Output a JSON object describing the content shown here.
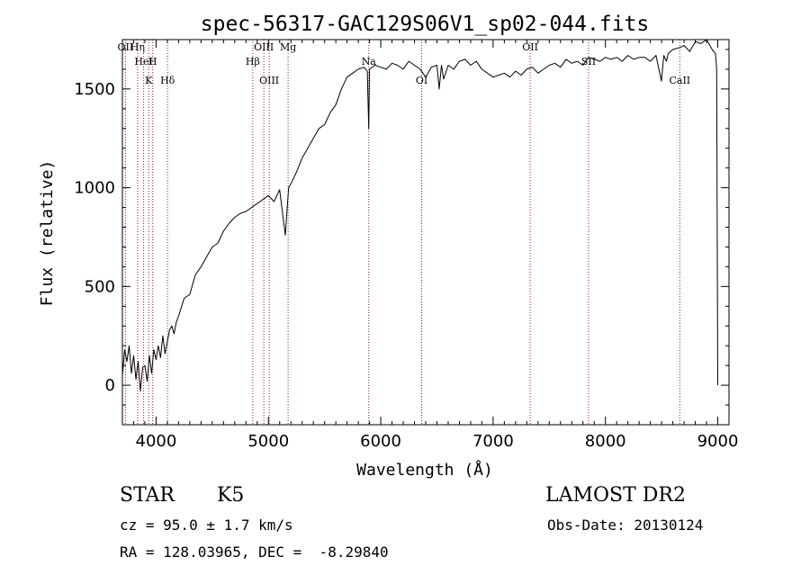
{
  "chart_data": {
    "type": "line",
    "title": "spec-56317-GAC129S06V1_sp02-044.fits",
    "xlabel": "Wavelength (Å)",
    "ylabel": "Flux (relative)",
    "xlim": [
      3700,
      9100
    ],
    "ylim": [
      -200,
      1750
    ],
    "xticks": [
      4000,
      5000,
      6000,
      7000,
      8000,
      9000
    ],
    "yticks": [
      0,
      500,
      1000,
      1500
    ],
    "spectrum": {
      "x": [
        3700,
        3720,
        3740,
        3760,
        3780,
        3800,
        3820,
        3840,
        3860,
        3880,
        3900,
        3920,
        3940,
        3960,
        3980,
        4000,
        4020,
        4040,
        4060,
        4080,
        4100,
        4120,
        4140,
        4160,
        4180,
        4200,
        4250,
        4300,
        4350,
        4400,
        4450,
        4500,
        4550,
        4600,
        4650,
        4700,
        4750,
        4800,
        4850,
        4900,
        4950,
        5000,
        5050,
        5100,
        5150,
        5180,
        5200,
        5250,
        5300,
        5350,
        5400,
        5450,
        5500,
        5550,
        5600,
        5650,
        5700,
        5750,
        5800,
        5850,
        5880,
        5893,
        5900,
        5950,
        6000,
        6050,
        6100,
        6150,
        6200,
        6250,
        6300,
        6350,
        6400,
        6450,
        6500,
        6520,
        6540,
        6560,
        6600,
        6650,
        6700,
        6750,
        6800,
        6850,
        6900,
        6950,
        7000,
        7050,
        7100,
        7150,
        7200,
        7250,
        7300,
        7350,
        7400,
        7450,
        7500,
        7550,
        7600,
        7650,
        7700,
        7750,
        7800,
        7850,
        7900,
        7950,
        8000,
        8050,
        8100,
        8150,
        8200,
        8250,
        8300,
        8350,
        8400,
        8450,
        8498,
        8520,
        8542,
        8560,
        8600,
        8662,
        8700,
        8750,
        8800,
        8850,
        8900,
        8950,
        8980,
        8990,
        9000
      ],
      "y": [
        50,
        180,
        120,
        200,
        60,
        150,
        30,
        120,
        -30,
        90,
        100,
        20,
        150,
        60,
        180,
        130,
        200,
        140,
        250,
        160,
        220,
        280,
        300,
        260,
        320,
        350,
        440,
        460,
        560,
        600,
        650,
        700,
        720,
        780,
        820,
        850,
        870,
        880,
        900,
        920,
        940,
        960,
        930,
        990,
        760,
        1000,
        1020,
        1080,
        1150,
        1200,
        1250,
        1300,
        1320,
        1380,
        1420,
        1500,
        1560,
        1580,
        1600,
        1610,
        1590,
        1300,
        1600,
        1620,
        1610,
        1600,
        1630,
        1620,
        1600,
        1640,
        1620,
        1600,
        1560,
        1610,
        1620,
        1500,
        1620,
        1550,
        1620,
        1600,
        1640,
        1650,
        1620,
        1640,
        1600,
        1580,
        1560,
        1570,
        1580,
        1560,
        1590,
        1570,
        1600,
        1610,
        1580,
        1600,
        1620,
        1630,
        1610,
        1650,
        1630,
        1640,
        1620,
        1660,
        1650,
        1640,
        1660,
        1650,
        1660,
        1640,
        1670,
        1650,
        1660,
        1660,
        1640,
        1670,
        1540,
        1670,
        1640,
        1680,
        1700,
        1710,
        1720,
        1690,
        1740,
        1730,
        1750,
        1700,
        1680,
        1600,
        0
      ]
    },
    "line_markers": [
      {
        "label": "Hη",
        "wavelength": 3835
      },
      {
        "label": "H",
        "wavelength": 3970
      },
      {
        "label": "K",
        "wavelength": 3934
      },
      {
        "label": "OII",
        "wavelength": 3727
      },
      {
        "label": "HeI",
        "wavelength": 3889
      },
      {
        "label": "Hδ",
        "wavelength": 4102
      },
      {
        "label": "OIII",
        "wavelength": 4959
      },
      {
        "label": "Hβ",
        "wavelength": 4861
      },
      {
        "label": "OIII",
        "wavelength": 5007
      },
      {
        "label": "Mg",
        "wavelength": 5175
      },
      {
        "label": "Na",
        "wavelength": 5893
      },
      {
        "label": "OI",
        "wavelength": 6364
      },
      {
        "label": "OII",
        "wavelength": 7330
      },
      {
        "label": "SII",
        "wavelength": 7850
      },
      {
        "label": "CaII",
        "wavelength": 8662
      }
    ]
  },
  "info": {
    "class": "STAR",
    "subclass": "K5",
    "survey": "LAMOST DR2",
    "cz": "cz = 95.0 ± 1.7 km/s",
    "obs_date": "Obs-Date: 20130124",
    "coords": "RA = 128.03965, DEC =  -8.29840"
  },
  "colors": {
    "spectrum": "#000000",
    "marker_line": "#9b1b1b"
  }
}
